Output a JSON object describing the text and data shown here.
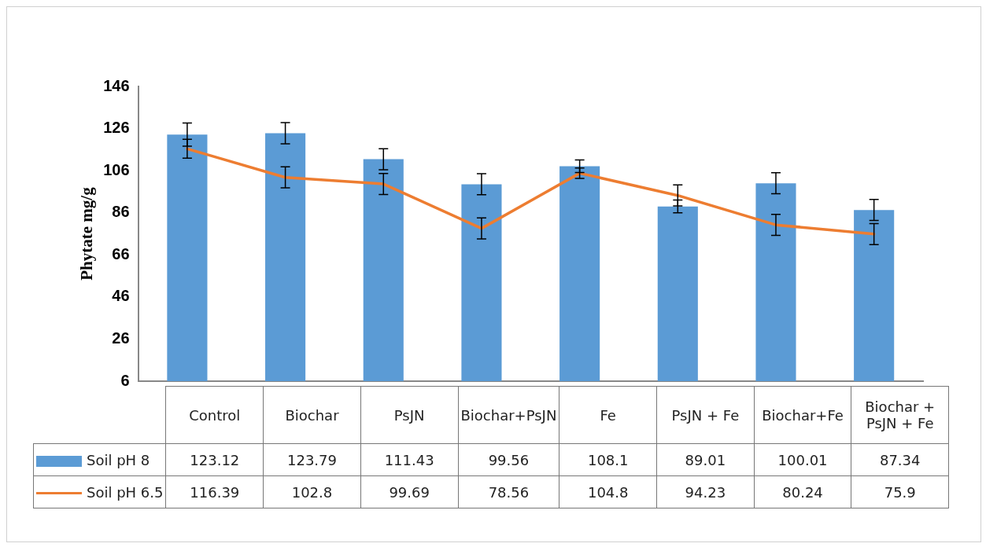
{
  "chart_data": {
    "type": "bar",
    "categories": [
      "Control",
      "Biochar",
      "PsJN",
      "Biochar+PsJN",
      "Fe",
      "PsJN + Fe",
      "Biochar+Fe",
      "Biochar + PsJN + Fe"
    ],
    "ylabel": "Phytate mg/g",
    "ylim": [
      6,
      146
    ],
    "yticks": [
      6,
      26,
      46,
      66,
      86,
      106,
      126,
      146
    ],
    "series": [
      {
        "name": "Soil pH 8",
        "color": "#5b9bd5",
        "values": [
          123.12,
          123.79,
          111.43,
          99.56,
          108.1,
          89.01,
          100.01,
          87.34
        ],
        "errors": [
          5.5,
          5,
          5,
          5,
          3,
          3,
          5,
          5
        ]
      },
      {
        "name": "Soil pH 6.5",
        "type": "line",
        "color": "#ed7d31",
        "values": [
          116.39,
          102.8,
          99.69,
          78.56,
          104.8,
          94.23,
          80.24,
          75.9
        ],
        "errors": [
          4.5,
          5,
          5,
          5,
          2.5,
          5,
          5,
          5
        ]
      }
    ],
    "data_labels": true,
    "legend": "bottom",
    "grid": false,
    "marker": "none"
  }
}
